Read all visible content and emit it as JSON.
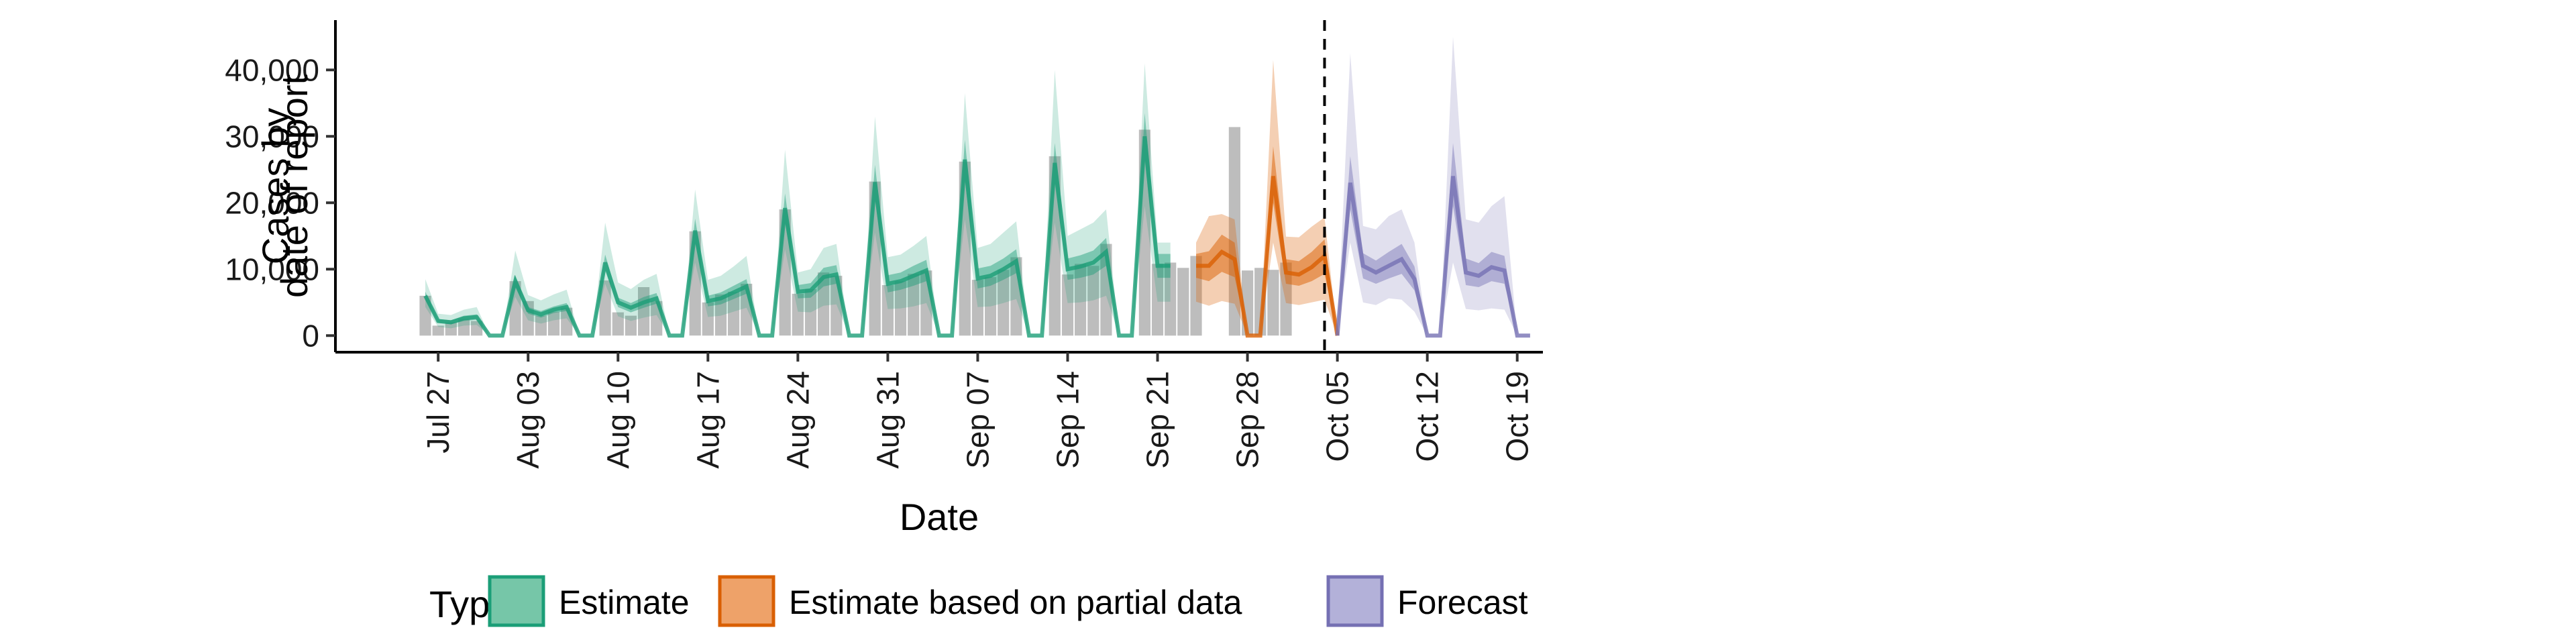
{
  "chart_data": {
    "type": "area",
    "xlabel": "Date",
    "ylabel_lines": [
      "Cases by",
      "date of report"
    ],
    "ylim": [
      -2500,
      47500
    ],
    "y_ticks": [
      0,
      10000,
      20000,
      30000,
      40000
    ],
    "y_tick_labels": [
      "0",
      "10,000",
      "20,000",
      "30,000",
      "40,000"
    ],
    "x_ticks": [
      "Jul 27",
      "Aug 03",
      "Aug 10",
      "Aug 17",
      "Aug 24",
      "Aug 31",
      "Sep 07",
      "Sep 14",
      "Sep 21",
      "Sep 28",
      "Oct 05",
      "Oct 12",
      "Oct 19"
    ],
    "x_range_days": [
      "2020-07-19",
      "2020-10-21"
    ],
    "forecast_start_line": "2020-10-04",
    "grid": false,
    "legend": {
      "title": "Type",
      "position": "bottom",
      "entries": [
        {
          "label": "Estimate",
          "fill": "#76c6a8",
          "stroke": "#1b9e77"
        },
        {
          "label": "Estimate based on partial data",
          "fill": "#eea269",
          "stroke": "#d95f02"
        },
        {
          "label": "Forecast",
          "fill": "#b3b1d9",
          "stroke": "#7570b3"
        }
      ]
    },
    "colors": {
      "estimate": "#1b9e77",
      "partial": "#d95f02",
      "forecast": "#7570b3",
      "bar": "#bdbdbd"
    },
    "start_date": "2020-07-26",
    "reported_cases": [
      6000,
      1500,
      2000,
      2500,
      2200,
      0,
      0,
      8200,
      5200,
      3000,
      3600,
      4200,
      0,
      0,
      8300,
      3500,
      3000,
      7300,
      5200,
      0,
      0,
      15700,
      5000,
      6200,
      6600,
      7800,
      0,
      0,
      19000,
      6300,
      7000,
      9500,
      9000,
      0,
      0,
      23200,
      7600,
      8200,
      9300,
      9800,
      0,
      0,
      26200,
      8400,
      8800,
      9900,
      11800,
      0,
      0,
      27000,
      9200,
      10800,
      10500,
      13800,
      0,
      0,
      31000,
      10800,
      11000,
      10200,
      12000,
      0,
      0,
      31400,
      9800,
      10200,
      9900,
      11000
    ],
    "estimate_dates_count": 61,
    "estimate_median": [
      6000,
      2200,
      2000,
      2600,
      2800,
      0,
      0,
      8200,
      3800,
      3200,
      3900,
      4300,
      0,
      0,
      11000,
      5000,
      4200,
      5000,
      5600,
      0,
      0,
      15800,
      5200,
      5600,
      6500,
      7400,
      0,
      0,
      19200,
      6600,
      6800,
      8800,
      9200,
      0,
      0,
      23100,
      7800,
      8200,
      9000,
      9800,
      0,
      0,
      26500,
      8600,
      9000,
      10000,
      11200,
      0,
      0,
      26000,
      10000,
      10400,
      11000,
      12600,
      0,
      0,
      30000,
      10500,
      10500
    ],
    "estimate_lower50": [
      5400,
      1900,
      1700,
      2200,
      2400,
      0,
      0,
      7300,
      3300,
      2700,
      3400,
      3700,
      0,
      0,
      9800,
      4300,
      3500,
      4200,
      4800,
      0,
      0,
      14000,
      4400,
      4700,
      5500,
      6300,
      0,
      0,
      17000,
      5600,
      5700,
      7400,
      7800,
      0,
      0,
      20500,
      6500,
      6900,
      7500,
      8200,
      0,
      0,
      23500,
      7100,
      7500,
      8400,
      9400,
      0,
      0,
      23000,
      8400,
      8700,
      9200,
      10500,
      0,
      0,
      26500,
      8700,
      8700
    ],
    "estimate_upper50": [
      6600,
      2500,
      2300,
      3000,
      3200,
      0,
      0,
      9100,
      4300,
      3700,
      4400,
      4900,
      0,
      0,
      12200,
      5700,
      4900,
      5800,
      6400,
      0,
      0,
      17600,
      6000,
      6500,
      7500,
      8500,
      0,
      0,
      21400,
      7600,
      7900,
      10200,
      10600,
      0,
      0,
      25700,
      9100,
      9500,
      10500,
      11400,
      0,
      0,
      29500,
      10100,
      10500,
      11600,
      13000,
      0,
      0,
      29000,
      11600,
      12100,
      12800,
      14700,
      0,
      0,
      33500,
      12300,
      12300
    ],
    "estimate_lower90": [
      4300,
      1300,
      1100,
      1500,
      1600,
      0,
      0,
      5800,
      2300,
      1800,
      2300,
      2600,
      0,
      0,
      7800,
      2900,
      2200,
      2700,
      3100,
      0,
      0,
      11000,
      2800,
      3000,
      3600,
      4200,
      0,
      0,
      13000,
      3600,
      3500,
      4500,
      4700,
      0,
      0,
      15500,
      4000,
      4100,
      4400,
      4900,
      0,
      0,
      17500,
      4300,
      4400,
      4900,
      5500,
      0,
      0,
      17000,
      4900,
      5000,
      5300,
      6000,
      0,
      0,
      19500,
      5100,
      5100
    ],
    "estimate_upper90": [
      8500,
      3300,
      3100,
      3900,
      4300,
      0,
      0,
      12800,
      6100,
      5300,
      6200,
      6900,
      0,
      0,
      17000,
      8000,
      7000,
      8400,
      9300,
      0,
      0,
      22000,
      8400,
      9000,
      10400,
      12000,
      0,
      0,
      28000,
      9500,
      10000,
      13200,
      13800,
      0,
      0,
      33000,
      11800,
      12200,
      13500,
      15000,
      0,
      0,
      36500,
      13200,
      13800,
      15500,
      17200,
      0,
      0,
      40000,
      15000,
      16000,
      17000,
      19000,
      0,
      0,
      41000,
      14000,
      14000
    ],
    "partial_start_index": 60,
    "partial_median": [
      10500,
      10500,
      12600,
      11500,
      0,
      0,
      24000,
      9500,
      9200,
      10300,
      12000,
      0
    ],
    "partial_lower50": [
      8700,
      8200,
      9600,
      8800,
      0,
      0,
      20000,
      7800,
      7500,
      8200,
      9300,
      0
    ],
    "partial_upper50": [
      12300,
      12700,
      15200,
      14000,
      0,
      0,
      28500,
      11500,
      11200,
      12600,
      14500,
      0
    ],
    "partial_lower90": [
      5100,
      4500,
      5200,
      4800,
      0,
      0,
      14000,
      4900,
      4600,
      5000,
      5400,
      0
    ],
    "partial_upper90": [
      14000,
      18000,
      18300,
      17500,
      0,
      0,
      41500,
      14900,
      14800,
      16400,
      17800,
      0
    ],
    "forecast_start_index": 71,
    "forecast_median": [
      0,
      23000,
      10500,
      9500,
      10500,
      11500,
      8500,
      0,
      0,
      24000,
      9500,
      9000,
      10300,
      9800,
      0,
      0
    ],
    "forecast_lower50": [
      0,
      19000,
      8600,
      7800,
      8600,
      9300,
      6800,
      0,
      0,
      19500,
      7600,
      7300,
      8200,
      7800,
      0,
      0
    ],
    "forecast_upper50": [
      0,
      27000,
      12400,
      11300,
      12600,
      13800,
      10400,
      0,
      0,
      29000,
      11600,
      10900,
      12600,
      12000,
      0,
      0
    ],
    "forecast_lower90": [
      0,
      14000,
      5000,
      4600,
      5600,
      5400,
      3600,
      0,
      0,
      11000,
      4000,
      3800,
      4100,
      3900,
      0,
      0
    ],
    "forecast_upper90": [
      0,
      42500,
      16500,
      16000,
      18000,
      19000,
      14000,
      0,
      0,
      45000,
      17500,
      17000,
      19500,
      21000,
      0,
      0
    ]
  }
}
